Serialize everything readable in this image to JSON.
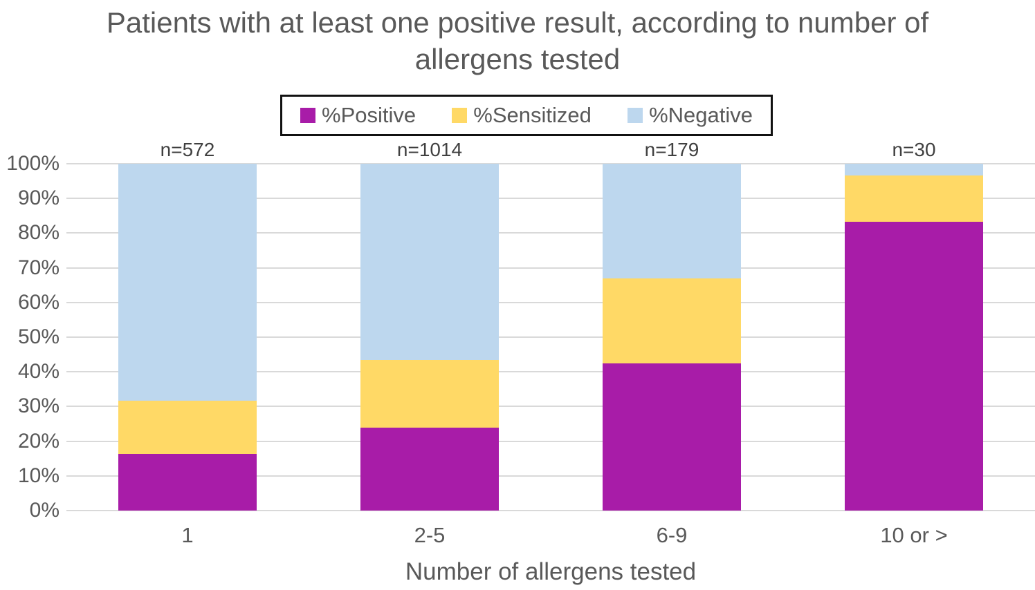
{
  "title": "Patients with at least one positive result, according to number of allergens tested",
  "legend": {
    "items": [
      {
        "label": "%Positive",
        "color": "#a81ca8"
      },
      {
        "label": "%Sensitized",
        "color": "#ffd966"
      },
      {
        "label": "%Negative",
        "color": "#bdd7ee"
      }
    ]
  },
  "chart_data": {
    "type": "bar",
    "stacked": true,
    "title": "Patients with at least one positive result, according to number of allergens tested",
    "categories": [
      "1",
      "2-5",
      "6-9",
      "10 or >"
    ],
    "bar_annotations": [
      "n=572",
      "n=1014",
      "n=179",
      "n=30"
    ],
    "series": [
      {
        "name": "%Positive",
        "color": "#a81ca8",
        "values": [
          16.3,
          24.0,
          42.5,
          83.3
        ]
      },
      {
        "name": "%Sensitized",
        "color": "#ffd966",
        "values": [
          15.3,
          19.5,
          24.5,
          13.4
        ]
      },
      {
        "name": "%Negative",
        "color": "#bdd7ee",
        "values": [
          68.4,
          56.5,
          33.0,
          3.3
        ]
      }
    ],
    "xlabel": "Number of allergens tested",
    "ylabel": "",
    "ylim": [
      0,
      100
    ],
    "y_ticks": [
      "0%",
      "10%",
      "20%",
      "30%",
      "40%",
      "50%",
      "60%",
      "70%",
      "80%",
      "90%",
      "100%"
    ],
    "grid": true,
    "legend_position": "top"
  },
  "colors": {
    "text": "#595959",
    "gridline": "#d9d9d9",
    "legend_border": "#111111",
    "background": "#ffffff"
  }
}
